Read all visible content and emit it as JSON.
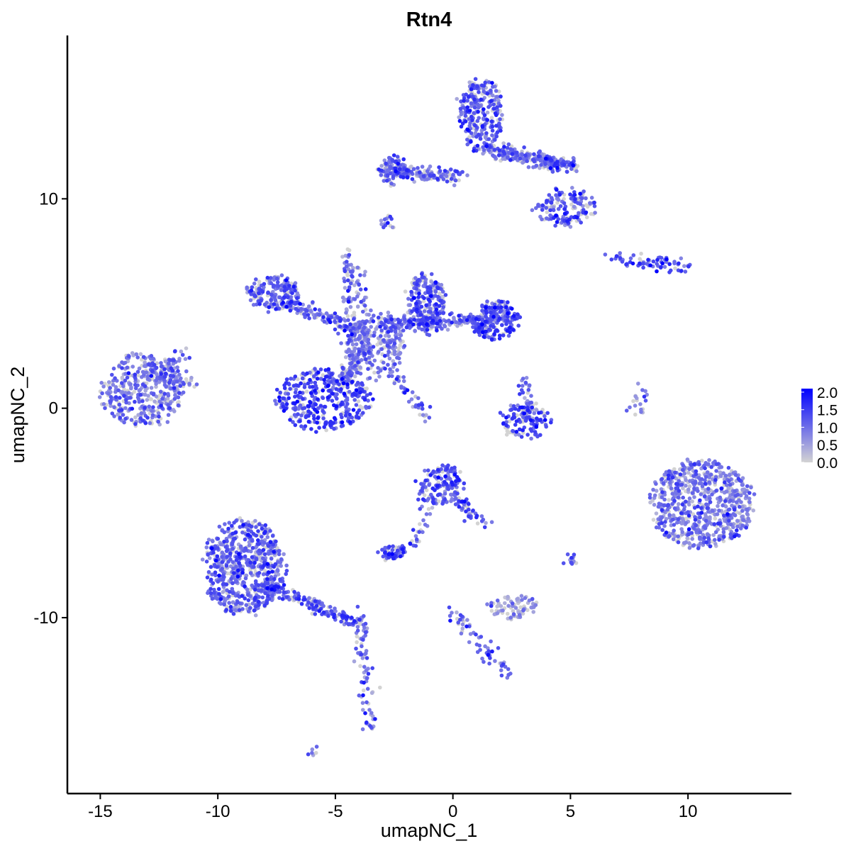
{
  "chart_data": {
    "type": "scatter",
    "title": "Rtn4",
    "xlabel": "umapNC_1",
    "ylabel": "umapNC_2",
    "xlim": [
      -16.4,
      14.4
    ],
    "ylim": [
      -18.4,
      17.8
    ],
    "x_ticks": [
      -15,
      -10,
      -5,
      0,
      5,
      10
    ],
    "x_tick_labels": [
      "-15",
      "-10",
      "-5",
      "0",
      "5",
      "10"
    ],
    "y_ticks": [
      -10,
      0,
      10
    ],
    "y_tick_labels": [
      "-10",
      "0",
      "10"
    ],
    "grid": false,
    "legend": {
      "placement": "right",
      "title": "",
      "labels": [
        "2.0",
        "1.5",
        "1.0",
        "0.5",
        "0.0"
      ],
      "values": [
        2.0,
        1.5,
        1.0,
        0.5,
        0.0
      ],
      "color_low": "#d3d3d3",
      "color_high": "#0000ff",
      "range": [
        0,
        2.1
      ]
    },
    "clusters": [
      {
        "name": "c_left",
        "cx": -13.2,
        "cy": 0.9,
        "sx": 1.1,
        "sy": 1.1,
        "n": 380,
        "level": 0.9
      },
      {
        "name": "c_left_tail",
        "x0": -12.5,
        "y0": 1.3,
        "x1": -11.4,
        "y1": 2.8,
        "n": 40,
        "level": 0.9
      },
      {
        "name": "c_left_tail2",
        "x0": -12.4,
        "y0": 0.9,
        "x1": -11.0,
        "y1": 1.4,
        "n": 30,
        "level": 0.9
      },
      {
        "name": "c_ring",
        "cx": -5.5,
        "cy": 0.4,
        "sx": 1.3,
        "sy": 0.9,
        "n": 380,
        "level": 1.35
      },
      {
        "name": "c_upleft_blob",
        "cx": -7.6,
        "cy": 5.5,
        "sx": 0.7,
        "sy": 0.5,
        "n": 180,
        "level": 1.1
      },
      {
        "name": "c_upleft_arm",
        "x0": -7.0,
        "y0": 5.0,
        "x1": -3.5,
        "y1": 3.5,
        "n": 160,
        "level": 1.0
      },
      {
        "name": "c_center_hub",
        "cx": -3.4,
        "cy": 3.0,
        "sx": 0.8,
        "sy": 1.0,
        "n": 240,
        "level": 0.8
      },
      {
        "name": "c_center_right",
        "x0": -3.0,
        "y0": 4.0,
        "x1": 2.6,
        "y1": 4.3,
        "n": 260,
        "level": 1.0
      },
      {
        "name": "c_top_right_hub",
        "cx": -1.1,
        "cy": 5.0,
        "sx": 0.5,
        "sy": 0.9,
        "n": 230,
        "level": 1.2
      },
      {
        "name": "c_right_lobe",
        "cx": 1.8,
        "cy": 4.2,
        "sx": 0.6,
        "sy": 0.6,
        "n": 170,
        "level": 1.3
      },
      {
        "name": "c_spike_up",
        "x0": -4.4,
        "y0": 4.3,
        "x1": -4.5,
        "y1": 7.6,
        "n": 50,
        "level": 0.9
      },
      {
        "name": "c_spike_diag",
        "x0": -4.3,
        "y0": 7.0,
        "x1": -3.6,
        "y1": 4.2,
        "n": 30,
        "level": 1.0
      },
      {
        "name": "c_spike_down",
        "x0": -2.6,
        "y0": 1.8,
        "x1": -1.1,
        "y1": -0.6,
        "n": 40,
        "level": 1.1
      },
      {
        "name": "c_stem",
        "x0": -4.8,
        "y0": 1.2,
        "x1": -3.6,
        "y1": 3.0,
        "n": 90,
        "level": 0.9
      },
      {
        "name": "c_top_main",
        "cx": 1.2,
        "cy": 14.0,
        "sx": 0.6,
        "sy": 1.1,
        "n": 260,
        "level": 1.1
      },
      {
        "name": "c_top_band",
        "x0": 1.4,
        "y0": 12.4,
        "x1": 5.2,
        "y1": 11.5,
        "n": 260,
        "level": 1.0
      },
      {
        "name": "c_top_lower",
        "cx": 4.8,
        "cy": 9.6,
        "sx": 0.8,
        "sy": 0.6,
        "n": 150,
        "level": 1.2
      },
      {
        "name": "c_top_left_arm",
        "x0": -2.9,
        "y0": 11.3,
        "x1": 0.4,
        "y1": 11.1,
        "n": 160,
        "level": 1.0
      },
      {
        "name": "c_top_left_blob",
        "cx": -2.5,
        "cy": 11.4,
        "sx": 0.4,
        "sy": 0.4,
        "n": 80,
        "level": 1.1
      },
      {
        "name": "c_small_a",
        "cx": -2.7,
        "cy": 8.9,
        "sx": 0.15,
        "sy": 0.2,
        "n": 14,
        "level": 1.0
      },
      {
        "name": "c_right_strand",
        "x0": 6.9,
        "y0": 7.1,
        "x1": 10.0,
        "y1": 6.8,
        "n": 70,
        "level": 1.2
      },
      {
        "name": "c_right_mid",
        "cx": 3.1,
        "cy": -0.6,
        "sx": 0.7,
        "sy": 0.5,
        "n": 110,
        "level": 1.4
      },
      {
        "name": "c_right_mid_stem",
        "x0": 3.0,
        "y0": 1.6,
        "x1": 3.3,
        "y1": -0.4,
        "n": 40,
        "level": 1.0
      },
      {
        "name": "c_big_right",
        "cx": 10.6,
        "cy": -4.6,
        "sx": 1.4,
        "sy": 1.3,
        "n": 700,
        "level": 0.85
      },
      {
        "name": "c_thin_right",
        "x0": 8.1,
        "y0": 1.0,
        "x1": 7.8,
        "y1": -0.4,
        "n": 20,
        "level": 0.6
      },
      {
        "name": "c_mid_blob",
        "cx": -0.5,
        "cy": -3.7,
        "sx": 0.6,
        "sy": 0.6,
        "n": 150,
        "level": 1.2
      },
      {
        "name": "c_mid_tail",
        "x0": 0.2,
        "y0": -4.4,
        "x1": 1.3,
        "y1": -5.5,
        "n": 40,
        "level": 1.1
      },
      {
        "name": "c_mid_left_strand",
        "x0": -0.8,
        "y0": -4.4,
        "x1": -1.9,
        "y1": -6.8,
        "n": 30,
        "level": 1.0
      },
      {
        "name": "c_mid_small",
        "cx": -2.6,
        "cy": -6.9,
        "sx": 0.3,
        "sy": 0.2,
        "n": 50,
        "level": 1.2
      },
      {
        "name": "c_bottom_big",
        "cx": -8.9,
        "cy": -7.6,
        "sx": 1.1,
        "sy": 1.4,
        "n": 680,
        "level": 1.0
      },
      {
        "name": "c_bottom_arm",
        "x0": -8.1,
        "y0": -8.5,
        "x1": -3.8,
        "y1": -10.3,
        "n": 180,
        "level": 1.1
      },
      {
        "name": "c_bottom_tail",
        "x0": -3.9,
        "y0": -10.5,
        "x1": -3.5,
        "y1": -15.3,
        "n": 70,
        "level": 1.0
      },
      {
        "name": "c_bottom_mid",
        "cx": 2.5,
        "cy": -9.5,
        "sx": 0.7,
        "sy": 0.35,
        "n": 80,
        "level": 0.5
      },
      {
        "name": "c_bottom_mid_strand",
        "x0": -0.1,
        "y0": -9.6,
        "x1": 2.4,
        "y1": -12.8,
        "n": 60,
        "level": 1.1
      },
      {
        "name": "c_bottom_small",
        "cx": 5.0,
        "cy": -7.2,
        "sx": 0.15,
        "sy": 0.2,
        "n": 14,
        "level": 1.0
      },
      {
        "name": "c_bottom_dot",
        "cx": -6.0,
        "cy": -16.4,
        "sx": 0.1,
        "sy": 0.1,
        "n": 6,
        "level": 1.1
      }
    ]
  }
}
